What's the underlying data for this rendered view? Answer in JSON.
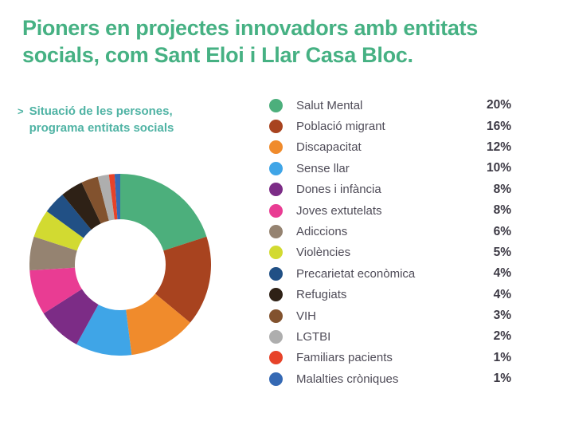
{
  "title_lines": [
    "Pioners en projectes innovadors amb entitats",
    "socials, com Sant Eloi i Llar Casa Bloc."
  ],
  "caption": {
    "marker": ">",
    "line1": "Situació de les persones,",
    "line2": "programa entitats socials"
  },
  "theme": {
    "background": "#FFFFFF",
    "title_color": "#46B183",
    "caption_color": "#4FB3A4",
    "legend_label_color": "#4F4C58",
    "legend_value_color": "#3C3944"
  },
  "chart_data": {
    "type": "pie",
    "subtype": "donut",
    "title": "Situació de les persones, programa entitats socials",
    "unit": "%",
    "direction": "clockwise",
    "start_angle_deg": 0,
    "inner_radius_ratio": 0.5,
    "legend_position": "right",
    "categories": [
      "Salut Mental",
      "Població migrant",
      "Discapacitat",
      "Sense llar",
      "Dones i infància",
      "Joves extutelats",
      "Adiccions",
      "Violències",
      "Precarietat econòmica",
      "Refugiats",
      "VIH",
      "LGTBI",
      "Familiars pacients",
      "Malalties cròniques"
    ],
    "values": [
      20,
      16,
      12,
      10,
      8,
      8,
      6,
      5,
      4,
      4,
      3,
      2,
      1,
      1
    ],
    "colors": [
      "#4CAF7C",
      "#A8431F",
      "#F08B2C",
      "#3FA5E7",
      "#7C2C86",
      "#E93C93",
      "#958371",
      "#D2DA31",
      "#215085",
      "#2E2116",
      "#82522E",
      "#AEAEAE",
      "#E74329",
      "#3569B4"
    ]
  }
}
